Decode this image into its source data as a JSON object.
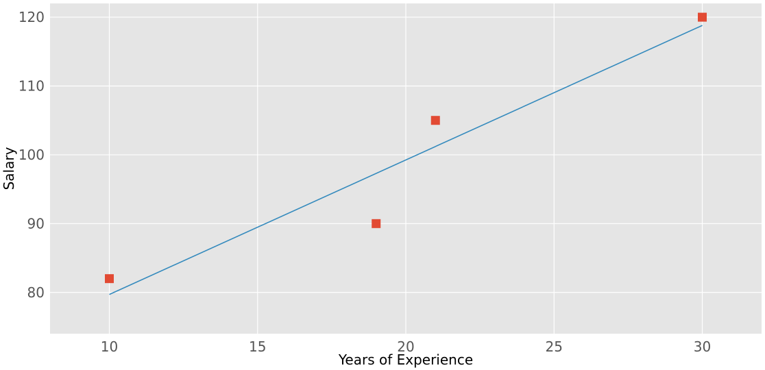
{
  "chart_data": {
    "type": "scatter",
    "xlabel": "Years of Experience",
    "ylabel": "Salary",
    "xlim": [
      8,
      32
    ],
    "ylim": [
      74,
      122
    ],
    "x_ticks": [
      10,
      15,
      20,
      25,
      30
    ],
    "y_ticks": [
      80,
      90,
      100,
      110,
      120
    ],
    "grid": true,
    "colors": {
      "background": "#e5e5e5",
      "grid": "#ffffff",
      "points": "#e24a33",
      "fit_line": "#348abd"
    },
    "series": [
      {
        "kind": "points",
        "marker": "square",
        "x": [
          10,
          19,
          21,
          30
        ],
        "y": [
          82,
          90,
          105,
          120
        ]
      },
      {
        "kind": "fit-line",
        "x": [
          10,
          30
        ],
        "y": [
          79.7,
          118.8
        ]
      }
    ]
  }
}
